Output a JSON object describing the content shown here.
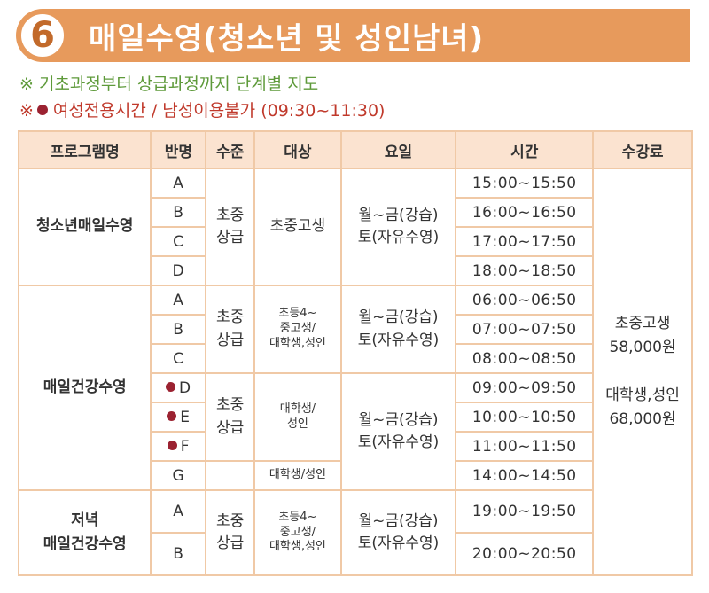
{
  "header": {
    "number": "6",
    "title": "매일수영(청소년 및 성인남녀)"
  },
  "notes": {
    "note1": "※ 기초과정부터 상급과정까지 단계별 지도",
    "note2_prefix": "※",
    "note2_text": "여성전용시간 / 남성이용불가 (09:30~11:30)"
  },
  "table": {
    "headers": [
      "프로그램명",
      "반명",
      "수준",
      "대상",
      "요일",
      "시간",
      "수강료"
    ],
    "groups": [
      {
        "program": "청소년매일수영",
        "rows": [
          {
            "cls": "A",
            "time": "15:00~15:50",
            "women_only": false
          },
          {
            "cls": "B",
            "time": "16:00~16:50",
            "women_only": false
          },
          {
            "cls": "C",
            "time": "17:00~17:50",
            "women_only": false
          },
          {
            "cls": "D",
            "time": "18:00~18:50",
            "women_only": false
          }
        ],
        "level": "초중\n상급",
        "target": "초중고생",
        "days": "월~금(강습)\n토(자유수영)"
      },
      {
        "program": "매일건강수영",
        "rows": [
          {
            "cls": "A",
            "time": "06:00~06:50",
            "women_only": false
          },
          {
            "cls": "B",
            "time": "07:00~07:50",
            "women_only": false
          },
          {
            "cls": "C",
            "time": "08:00~08:50",
            "women_only": false
          },
          {
            "cls": "D",
            "time": "09:00~09:50",
            "women_only": true
          },
          {
            "cls": "E",
            "time": "10:00~10:50",
            "women_only": true
          },
          {
            "cls": "F",
            "time": "11:00~11:50",
            "women_only": true
          },
          {
            "cls": "G",
            "time": "14:00~14:50",
            "women_only": false
          }
        ],
        "level_a": "초중\n상급",
        "level_b": "초중\n상급",
        "target_a": "초등4~\n중고생/\n대학생,성인",
        "target_b": "대학생/\n성인",
        "target_c": "대학생/성인",
        "days_a": "월~금(강습)\n토(자유수영)",
        "days_b": "월~금(강습)\n토(자유수영)"
      },
      {
        "program": "저녁\n매일건강수영",
        "rows": [
          {
            "cls": "A",
            "time": "19:00~19:50",
            "women_only": false
          },
          {
            "cls": "B",
            "time": "20:00~20:50",
            "women_only": false
          }
        ],
        "level": "초중\n상급",
        "target": "초등4~\n중고생/\n대학생,성인",
        "days": "월~금(강습)\n토(자유수영)"
      }
    ],
    "fee": "초중고생\n58,000원\n\n대학생,성인\n68,000원"
  },
  "colors": {
    "header_bar": "#e79a5c",
    "table_border": "#f0c9a6",
    "header_row": "#fbe3d0",
    "note_green": "#5e9a3a",
    "note_red": "#c0392b",
    "dot": "#9b2231"
  }
}
